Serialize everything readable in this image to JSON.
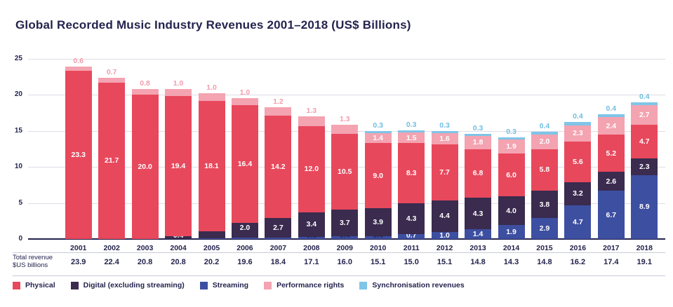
{
  "title": "Global Recorded Music Industry Revenues 2001–2018 (US$ Billions)",
  "chart_data": {
    "type": "bar",
    "stacked": true,
    "title": "Global Recorded Music Industry Revenues 2001–2018 (US$ Billions)",
    "categories": [
      "2001",
      "2002",
      "2003",
      "2004",
      "2005",
      "2006",
      "2007",
      "2008",
      "2009",
      "2010",
      "2011",
      "2012",
      "2013",
      "2014",
      "2015",
      "2016",
      "2017",
      "2018"
    ],
    "series": [
      {
        "key": "streaming",
        "name": "Streaming",
        "color": "#3D4FA1",
        "label_color": "#23234E",
        "values": [
          0,
          0,
          0,
          0,
          0.1,
          0.2,
          0.2,
          0.3,
          0.4,
          0.4,
          0.7,
          1.0,
          1.4,
          1.9,
          2.9,
          4.7,
          6.7,
          8.9
        ]
      },
      {
        "key": "digital",
        "name": "Digital (excluding streaming)",
        "color": "#3A2B4F",
        "label_color": "#3A2B4F",
        "values": [
          0,
          0,
          0,
          0.4,
          1.0,
          2.0,
          2.7,
          3.4,
          3.7,
          3.9,
          4.3,
          4.4,
          4.3,
          4.0,
          3.8,
          3.2,
          2.6,
          2.3
        ]
      },
      {
        "key": "physical",
        "name": "Physical",
        "color": "#E8485C",
        "label_color": "#E8485C",
        "values": [
          23.3,
          21.7,
          20.0,
          19.4,
          18.1,
          16.4,
          14.2,
          12.0,
          10.5,
          9.0,
          8.3,
          7.7,
          6.8,
          6.0,
          5.8,
          5.6,
          5.2,
          4.7
        ]
      },
      {
        "key": "performance",
        "name": "Performance rights",
        "color": "#F4A3B1",
        "label_color": "#F29CAC",
        "values": [
          0.6,
          0.7,
          0.8,
          1.0,
          1.0,
          1.0,
          1.2,
          1.3,
          1.3,
          1.4,
          1.5,
          1.6,
          1.8,
          1.9,
          2.0,
          2.3,
          2.4,
          2.7
        ]
      },
      {
        "key": "sync",
        "name": "Synchronisation revenues",
        "color": "#7EC5E8",
        "label_color": "#6FBEE2",
        "values": [
          0,
          0,
          0,
          0,
          0,
          0,
          0,
          0,
          0,
          0.3,
          0.3,
          0.3,
          0.3,
          0.3,
          0.4,
          0.4,
          0.4,
          0.4
        ]
      }
    ],
    "legend_order": [
      2,
      1,
      0,
      3,
      4
    ],
    "ylim": [
      0,
      25
    ],
    "yticks": [
      0,
      5,
      10,
      15,
      20,
      25
    ],
    "grid": true,
    "legend_position": "bottom",
    "totals": {
      "label_line1": "Total revenue",
      "label_line2": "$US billions",
      "values": [
        "23.9",
        "22.4",
        "20.8",
        "20.8",
        "20.2",
        "19.6",
        "18.4",
        "17.1",
        "16.0",
        "15.1",
        "15.0",
        "15.1",
        "14.8",
        "14.3",
        "14.8",
        "16.2",
        "17.4",
        "19.1"
      ]
    }
  }
}
